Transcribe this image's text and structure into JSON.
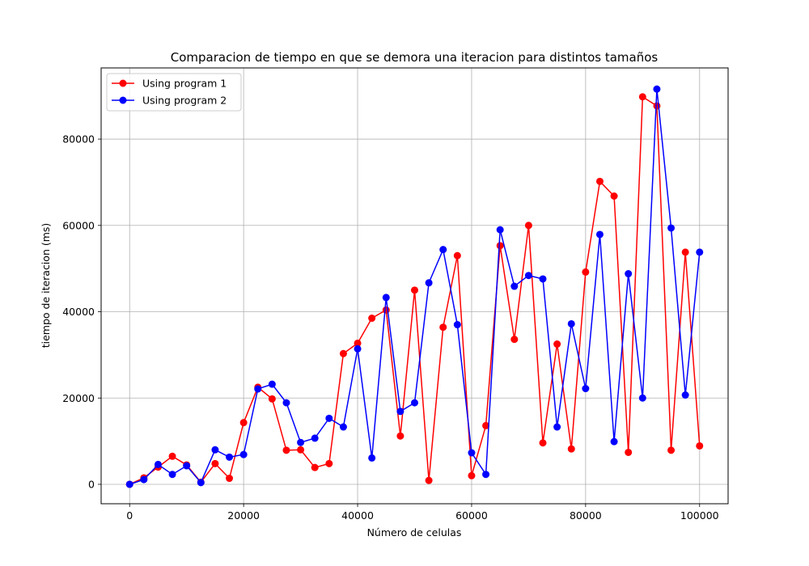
{
  "chart_data": {
    "type": "line",
    "title": "Comparacion de tiempo en que se demora una iteracion para distintos tamaños",
    "xlabel": "Número de celulas",
    "ylabel": "tiempo de iteracion (ms)",
    "xlim": [
      -5000,
      105000
    ],
    "ylim": [
      -4500,
      96500
    ],
    "xticks": [
      0,
      20000,
      40000,
      60000,
      80000,
      100000
    ],
    "yticks": [
      0,
      20000,
      40000,
      60000,
      80000
    ],
    "grid": true,
    "legend_position": "top-left",
    "x": [
      0,
      2500,
      5000,
      7500,
      10000,
      12500,
      15000,
      17500,
      20000,
      22500,
      25000,
      27500,
      30000,
      32500,
      35000,
      37500,
      40000,
      42500,
      45000,
      47500,
      50000,
      52500,
      55000,
      57500,
      60000,
      62500,
      65000,
      67500,
      70000,
      72500,
      75000,
      77500,
      80000,
      82500,
      85000,
      87500,
      90000,
      92500,
      95000,
      97500,
      100000
    ],
    "series": [
      {
        "name": "Using program 1",
        "color": "#ff0000",
        "values": [
          0,
          1500,
          4000,
          6500,
          4500,
          500,
          4800,
          1400,
          14300,
          22500,
          19800,
          7900,
          8000,
          3900,
          4800,
          30300,
          32700,
          38500,
          40400,
          11200,
          45000,
          900,
          36400,
          53000,
          2000,
          13600,
          55300,
          33600,
          60000,
          9600,
          32500,
          8200,
          49200,
          70200,
          66800,
          7400,
          89800,
          87700,
          7900,
          53800,
          8900
        ]
      },
      {
        "name": "Using program 2",
        "color": "#0000ff",
        "values": [
          0,
          1100,
          4600,
          2300,
          4300,
          400,
          8000,
          6300,
          6900,
          22100,
          23200,
          18900,
          9700,
          10700,
          15300,
          13300,
          31400,
          6100,
          43300,
          16900,
          18900,
          46700,
          54400,
          37000,
          7300,
          2300,
          59000,
          45900,
          48400,
          47600,
          13300,
          37200,
          22200,
          57900,
          9900,
          48800,
          20000,
          91600,
          59400,
          20700,
          53800
        ]
      }
    ]
  }
}
